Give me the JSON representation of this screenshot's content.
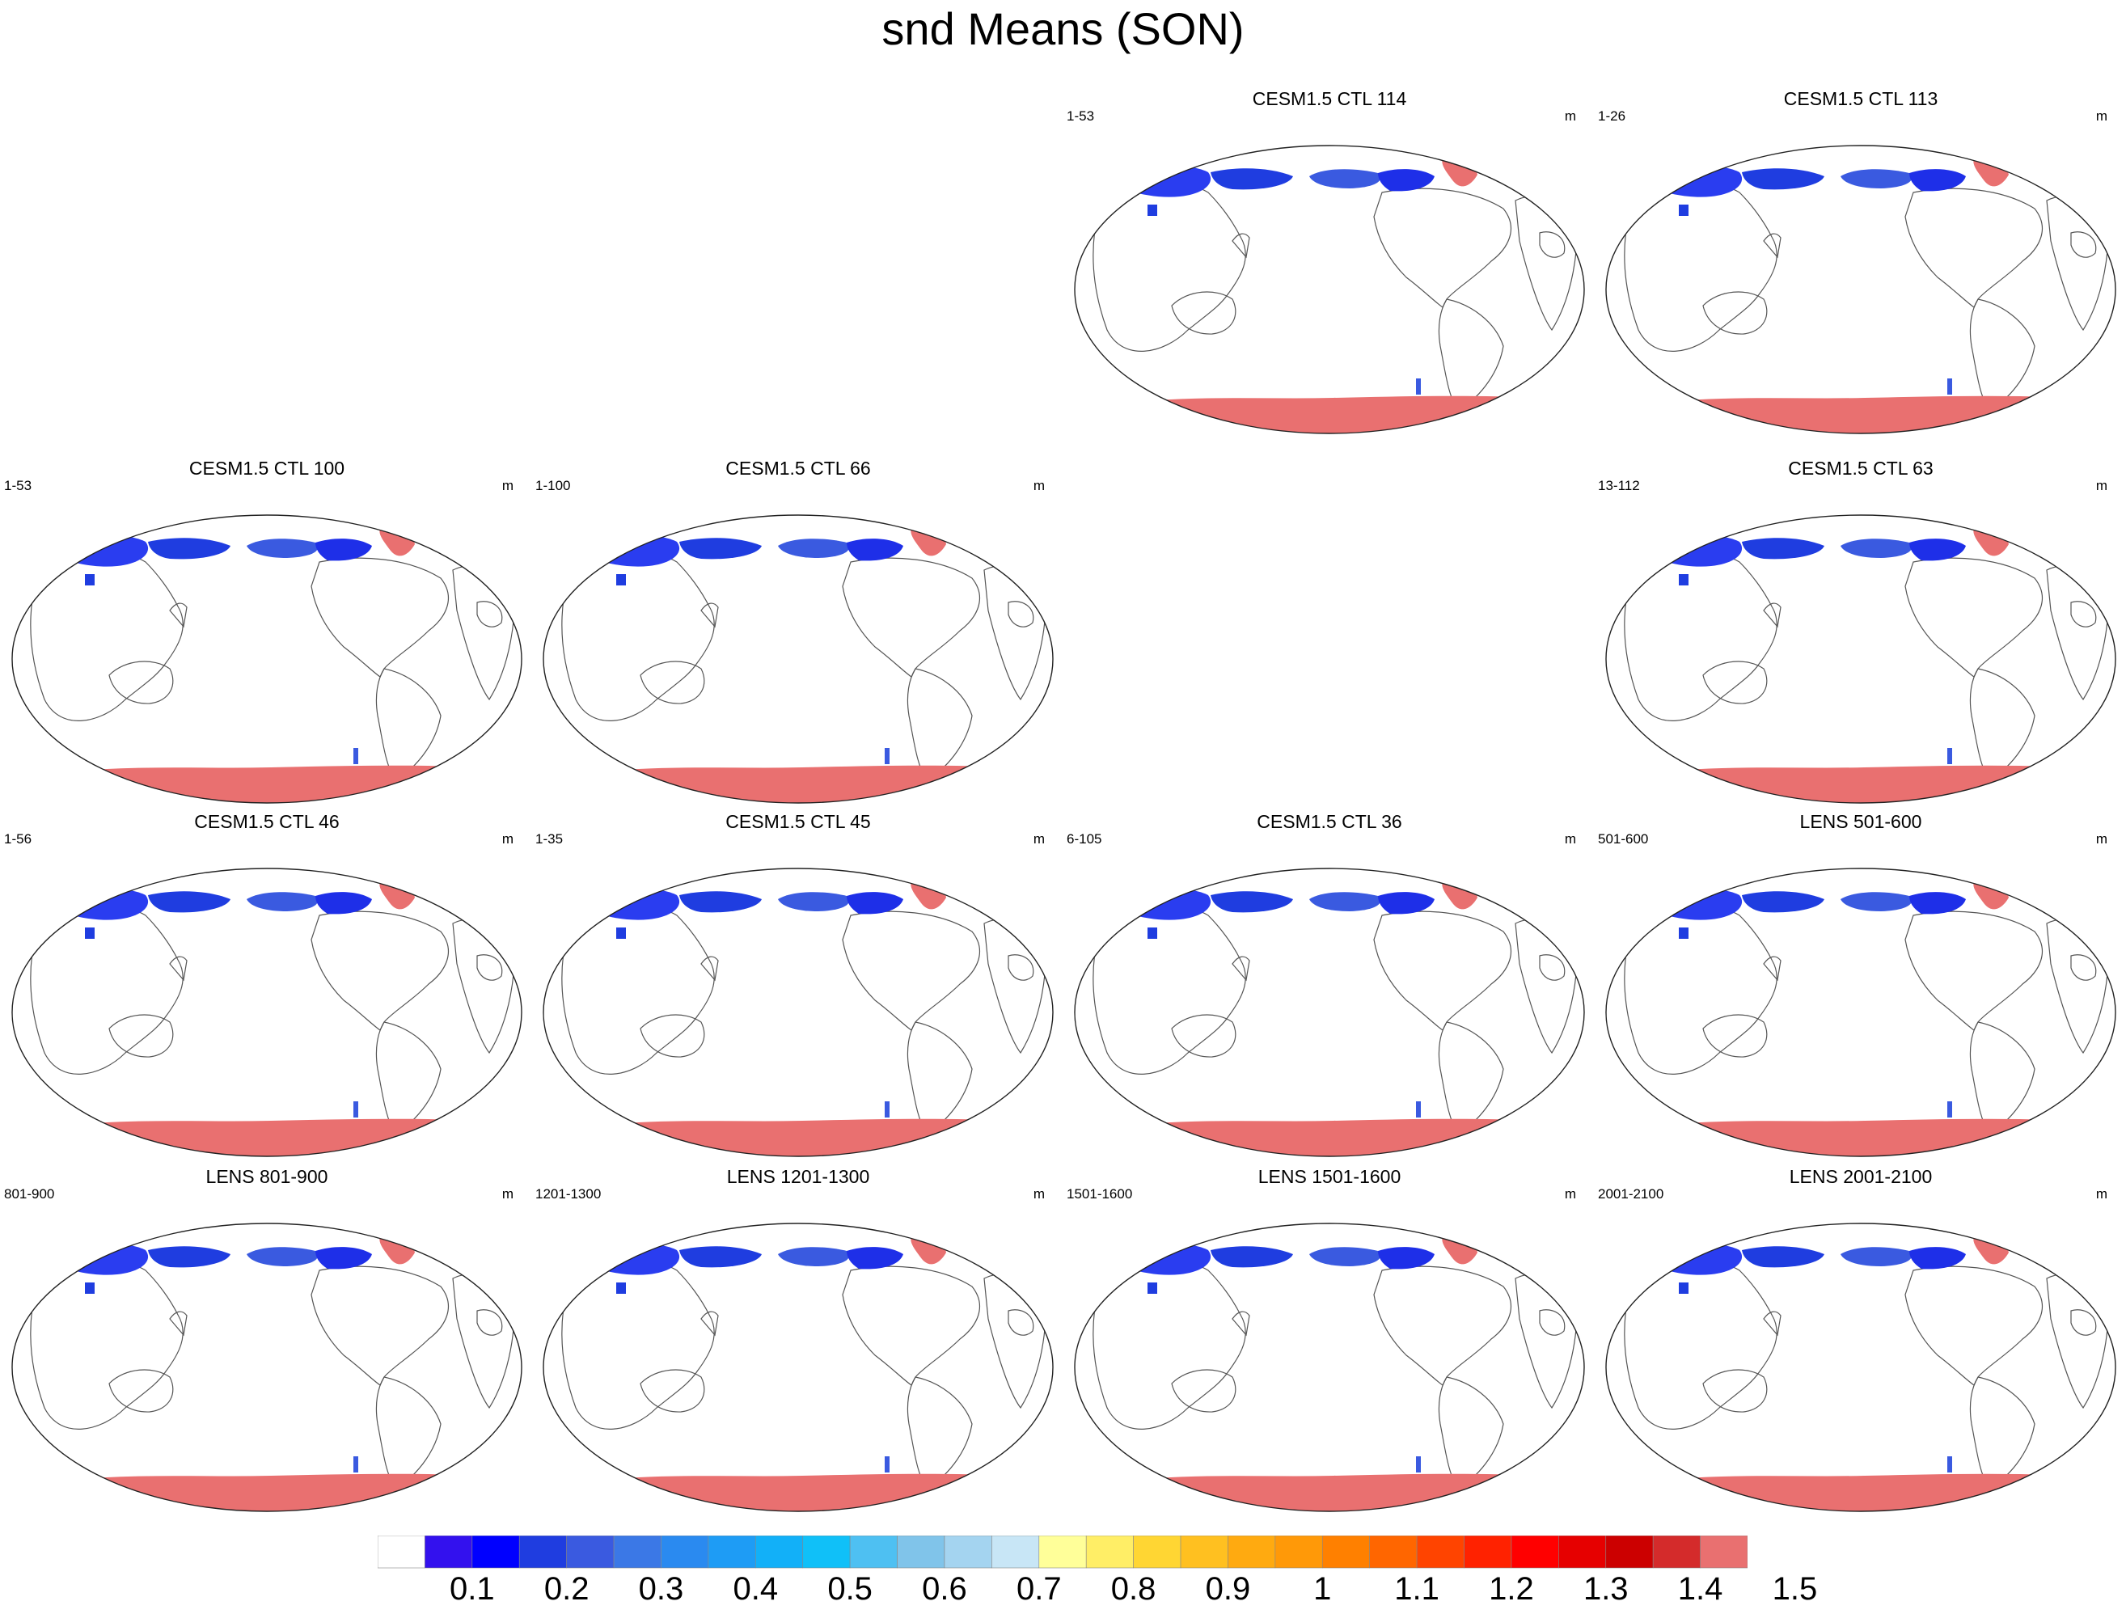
{
  "title": "snd Means (SON)",
  "units": "m",
  "chart_data": {
    "type": "heatmap",
    "variable": "snd",
    "season": "SON",
    "units": "m",
    "projection": "Robinson-like world map, Pacific centered",
    "grid": {
      "columns": 4,
      "rows": 4
    },
    "panels": [
      {
        "row": 0,
        "col": 2,
        "title": "CESM1.5 CTL 114",
        "left_label": "1-53",
        "south_max": 1.5
      },
      {
        "row": 0,
        "col": 3,
        "title": "CESM1.5 CTL 113",
        "left_label": "1-26",
        "south_max": 1.5
      },
      {
        "row": 1,
        "col": 0,
        "title": "CESM1.5 CTL 100",
        "left_label": "1-53",
        "south_max": 1.5
      },
      {
        "row": 1,
        "col": 1,
        "title": "CESM1.5 CTL 66",
        "left_label": "1-100",
        "south_max": 1.5
      },
      {
        "row": 1,
        "col": 3,
        "title": "CESM1.5 CTL 63",
        "left_label": "13-112",
        "south_max": 1.5
      },
      {
        "row": 2,
        "col": 0,
        "title": "CESM1.5 CTL 46",
        "left_label": "1-56",
        "south_max": 1.5
      },
      {
        "row": 2,
        "col": 1,
        "title": "CESM1.5 CTL 45",
        "left_label": "1-35",
        "south_max": 1.5
      },
      {
        "row": 2,
        "col": 2,
        "title": "CESM1.5 CTL 36",
        "left_label": "6-105",
        "south_max": 1.5
      },
      {
        "row": 2,
        "col": 3,
        "title": "LENS 501-600",
        "left_label": "501-600",
        "south_max": 1.4
      },
      {
        "row": 3,
        "col": 0,
        "title": "LENS 801-900",
        "left_label": "801-900",
        "south_max": 1.4
      },
      {
        "row": 3,
        "col": 1,
        "title": "LENS 1201-1300",
        "left_label": "1201-1300",
        "south_max": 1.4
      },
      {
        "row": 3,
        "col": 2,
        "title": "LENS 1501-1600",
        "left_label": "1501-1600",
        "south_max": 1.4
      },
      {
        "row": 3,
        "col": 3,
        "title": "LENS 2001-2100",
        "left_label": "2001-2100",
        "south_max": 1.4
      }
    ],
    "colorbar": {
      "colors": [
        "#ffffff",
        "#3311ee",
        "#0000ff",
        "#1f3de0",
        "#3a5ae0",
        "#3b78e6",
        "#2a8af0",
        "#1e9cf5",
        "#12b0f8",
        "#10c0f8",
        "#4ec0f2",
        "#80c4ea",
        "#a4d4f0",
        "#c8e6f6",
        "#ffff99",
        "#ffee66",
        "#ffd633",
        "#ffc020",
        "#ffaa10",
        "#ff9908",
        "#ff8000",
        "#ff6600",
        "#ff4400",
        "#ff2200",
        "#ff0000",
        "#e60000",
        "#cc0000",
        "#d42b2b",
        "#e97070"
      ],
      "labels": [
        "0.1",
        "0.2",
        "0.3",
        "0.4",
        "0.5",
        "0.6",
        "0.7",
        "0.8",
        "0.9",
        "1",
        "1.1",
        "1.2",
        "1.3",
        "1.4",
        "1.5"
      ]
    }
  }
}
